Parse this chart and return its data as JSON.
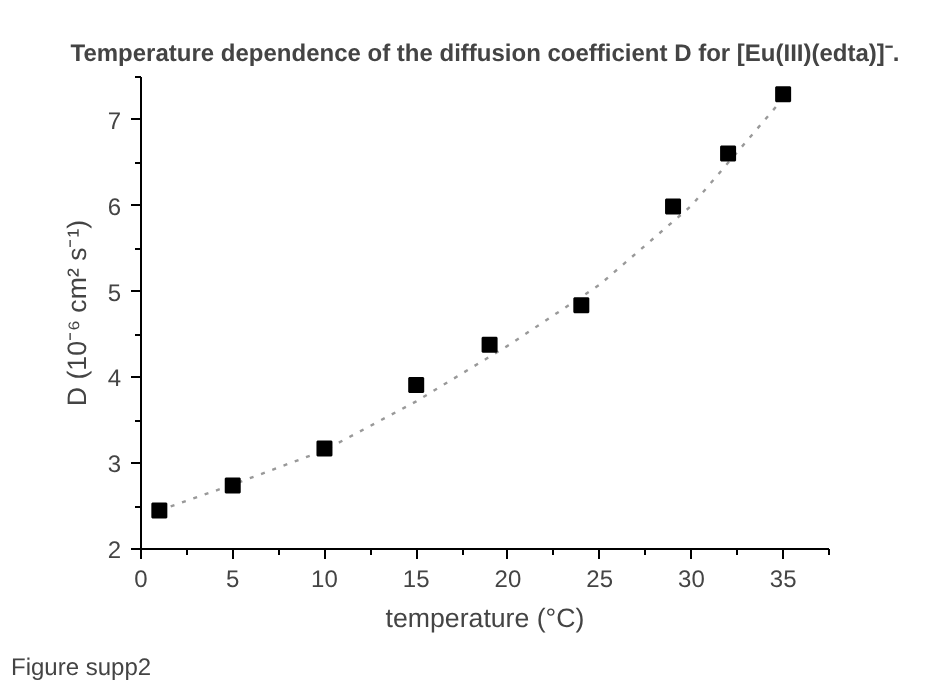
{
  "chart_data": {
    "type": "scatter",
    "title": "Temperature dependence of the diffusion coefficient D for [Eu(III)(edta)]⁻.",
    "xlabel": "temperature (°C)",
    "ylabel": "D (10⁻⁶ cm² s⁻¹)",
    "annotations": [
      "Figure supp2"
    ],
    "x": [
      1,
      5,
      10,
      15,
      19,
      24,
      29,
      32,
      35
    ],
    "series": [
      {
        "color": "#000000",
        "values": [
          2.45,
          2.74,
          3.17,
          3.91,
          4.38,
          4.84,
          5.99,
          6.61,
          7.3
        ],
        "marker": "square"
      },
      {
        "type": "line",
        "color": "#999999",
        "line_style": "dotted",
        "x": [
          1,
          5,
          10,
          15,
          20,
          25,
          30,
          35
        ],
        "values": [
          2.45,
          2.75,
          3.15,
          3.72,
          4.37,
          5.08,
          6.0,
          7.25
        ]
      }
    ],
    "xlim": [
      0,
      37.5
    ],
    "ylim": [
      2,
      7.5
    ],
    "xticks": [
      0,
      5,
      10,
      15,
      20,
      25,
      30,
      35
    ],
    "yticks": [
      2,
      3,
      4,
      5,
      6,
      7
    ],
    "grid": false
  }
}
